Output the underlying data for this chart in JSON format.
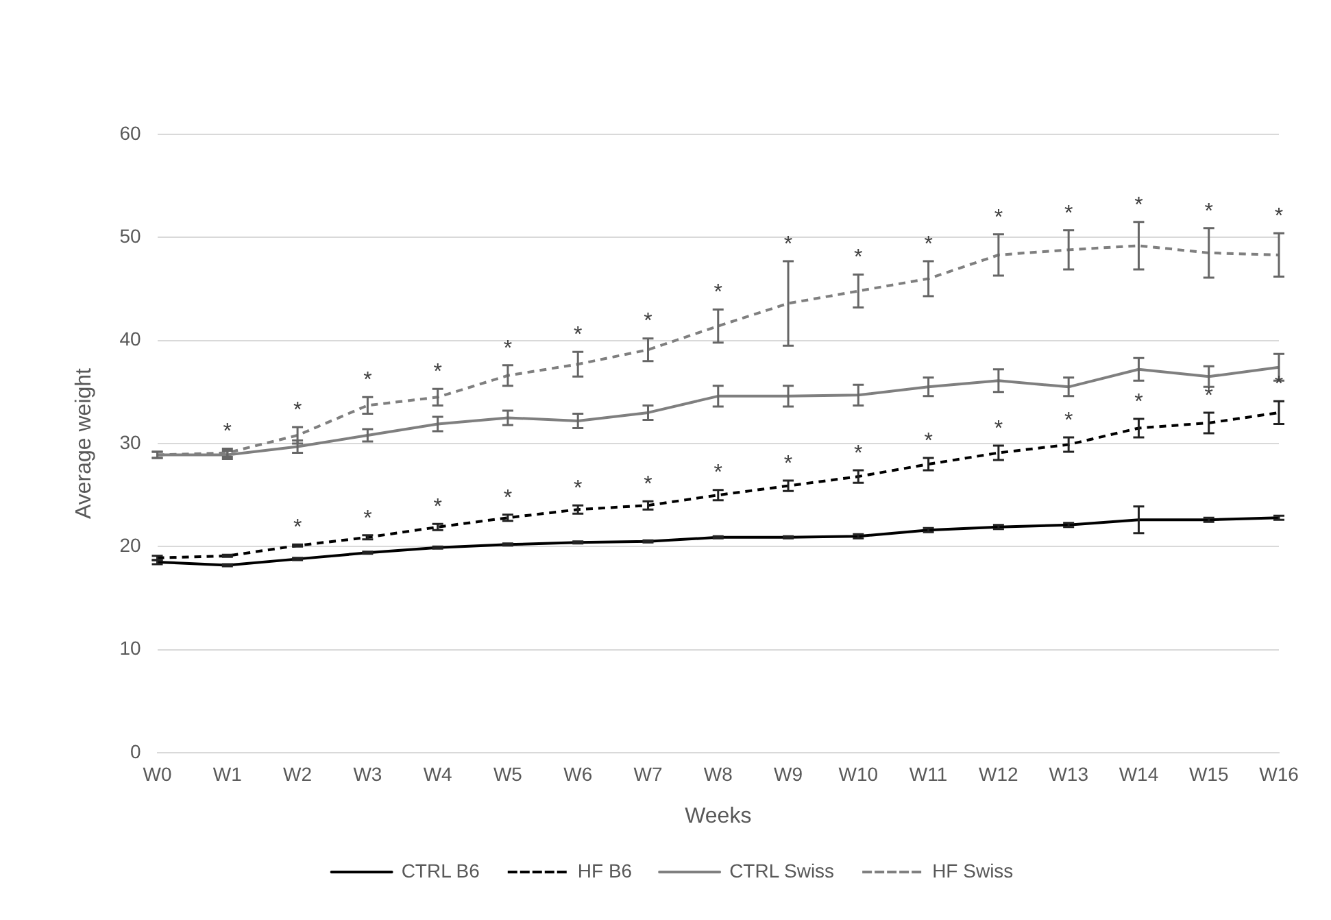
{
  "chart_data": {
    "type": "line",
    "xlabel": "Weeks",
    "ylabel": "Average weight",
    "categories": [
      "W0",
      "W1",
      "W2",
      "W3",
      "W4",
      "W5",
      "W6",
      "W7",
      "W8",
      "W9",
      "W10",
      "W11",
      "W12",
      "W13",
      "W14",
      "W15",
      "W16"
    ],
    "ylim": [
      0,
      60
    ],
    "yticks": [
      0,
      10,
      20,
      30,
      40,
      50,
      60
    ],
    "grid": "y",
    "legend": "bottom",
    "marker": "none",
    "series": [
      {
        "name": "CTRL B6",
        "color": "#000000",
        "line_style": "solid",
        "values": [
          18.5,
          18.2,
          18.8,
          19.4,
          19.9,
          20.2,
          20.4,
          20.5,
          20.9,
          20.9,
          21.0,
          21.6,
          21.9,
          22.1,
          22.6,
          22.6,
          22.8
        ],
        "errors": [
          0.2,
          0.1,
          0.1,
          0.1,
          0.1,
          0.1,
          0.1,
          0.1,
          0.1,
          0.1,
          0.2,
          0.2,
          0.2,
          0.2,
          1.3,
          0.2,
          0.2
        ]
      },
      {
        "name": "HF B6",
        "color": "#000000",
        "line_style": "dashed",
        "values": [
          18.9,
          19.1,
          20.1,
          20.9,
          21.9,
          22.8,
          23.6,
          24.0,
          25.0,
          25.9,
          26.8,
          28.0,
          29.1,
          29.9,
          31.5,
          32.0,
          33.0
        ],
        "errors": [
          0.2,
          0.1,
          0.1,
          0.2,
          0.3,
          0.3,
          0.4,
          0.4,
          0.5,
          0.5,
          0.6,
          0.6,
          0.7,
          0.7,
          0.9,
          1.0,
          1.1
        ]
      },
      {
        "name": "CTRL Swiss",
        "color": "#7f7f7f",
        "line_style": "solid",
        "values": [
          28.9,
          28.9,
          29.7,
          30.8,
          31.9,
          32.5,
          32.2,
          33.0,
          34.6,
          34.6,
          34.7,
          35.5,
          36.1,
          35.5,
          37.2,
          36.5,
          37.4
        ],
        "errors": [
          0.3,
          0.4,
          0.6,
          0.6,
          0.7,
          0.7,
          0.7,
          0.7,
          1.0,
          1.0,
          1.0,
          0.9,
          1.1,
          0.9,
          1.1,
          1.0,
          1.3
        ]
      },
      {
        "name": "HF Swiss",
        "color": "#7f7f7f",
        "line_style": "dashed",
        "values": [
          28.9,
          29.1,
          30.8,
          33.7,
          34.5,
          36.6,
          37.7,
          39.1,
          41.4,
          43.6,
          44.8,
          46.0,
          48.3,
          48.8,
          49.2,
          48.5,
          48.3
        ],
        "errors": [
          0.3,
          0.4,
          0.8,
          0.8,
          0.8,
          1.0,
          1.2,
          1.1,
          1.6,
          4.1,
          1.6,
          1.7,
          2.0,
          1.9,
          2.3,
          2.4,
          2.1
        ]
      }
    ],
    "annotations": [
      {
        "text": "*",
        "x": "W1",
        "y": 29.1
      },
      {
        "text": "*",
        "x": "W2",
        "y": 30.8
      },
      {
        "text": "*",
        "x": "W3",
        "y": 33.7
      },
      {
        "text": "*",
        "x": "W4",
        "y": 34.5
      },
      {
        "text": "*",
        "x": "W5",
        "y": 36.6
      },
      {
        "text": "*",
        "x": "W6",
        "y": 37.7
      },
      {
        "text": "*",
        "x": "W7",
        "y": 39.1
      },
      {
        "text": "*",
        "x": "W8",
        "y": 41.4
      },
      {
        "text": "*",
        "x": "W9",
        "y": 43.6
      },
      {
        "text": "*",
        "x": "W10",
        "y": 44.8
      },
      {
        "text": "*",
        "x": "W11",
        "y": 46.0
      },
      {
        "text": "*",
        "x": "W12",
        "y": 48.3
      },
      {
        "text": "*",
        "x": "W13",
        "y": 48.8
      },
      {
        "text": "*",
        "x": "W14",
        "y": 49.2
      },
      {
        "text": "*",
        "x": "W15",
        "y": 48.5
      },
      {
        "text": "*",
        "x": "W16",
        "y": 48.3
      },
      {
        "text": "*",
        "x": "W2",
        "y": 20.1
      },
      {
        "text": "*",
        "x": "W3",
        "y": 20.9
      },
      {
        "text": "*",
        "x": "W4",
        "y": 21.9
      },
      {
        "text": "*",
        "x": "W5",
        "y": 22.8
      },
      {
        "text": "*",
        "x": "W6",
        "y": 23.6
      },
      {
        "text": "*",
        "x": "W7",
        "y": 24.0
      },
      {
        "text": "*",
        "x": "W8",
        "y": 25.0
      },
      {
        "text": "*",
        "x": "W9",
        "y": 25.9
      },
      {
        "text": "*",
        "x": "W10",
        "y": 26.8
      },
      {
        "text": "*",
        "x": "W11",
        "y": 28.0
      },
      {
        "text": "*",
        "x": "W12",
        "y": 29.1
      },
      {
        "text": "*",
        "x": "W13",
        "y": 29.9
      },
      {
        "text": "*",
        "x": "W14",
        "y": 31.5
      },
      {
        "text": "*",
        "x": "W15",
        "y": 32.0
      },
      {
        "text": "*",
        "x": "W16",
        "y": 33.0
      }
    ]
  }
}
